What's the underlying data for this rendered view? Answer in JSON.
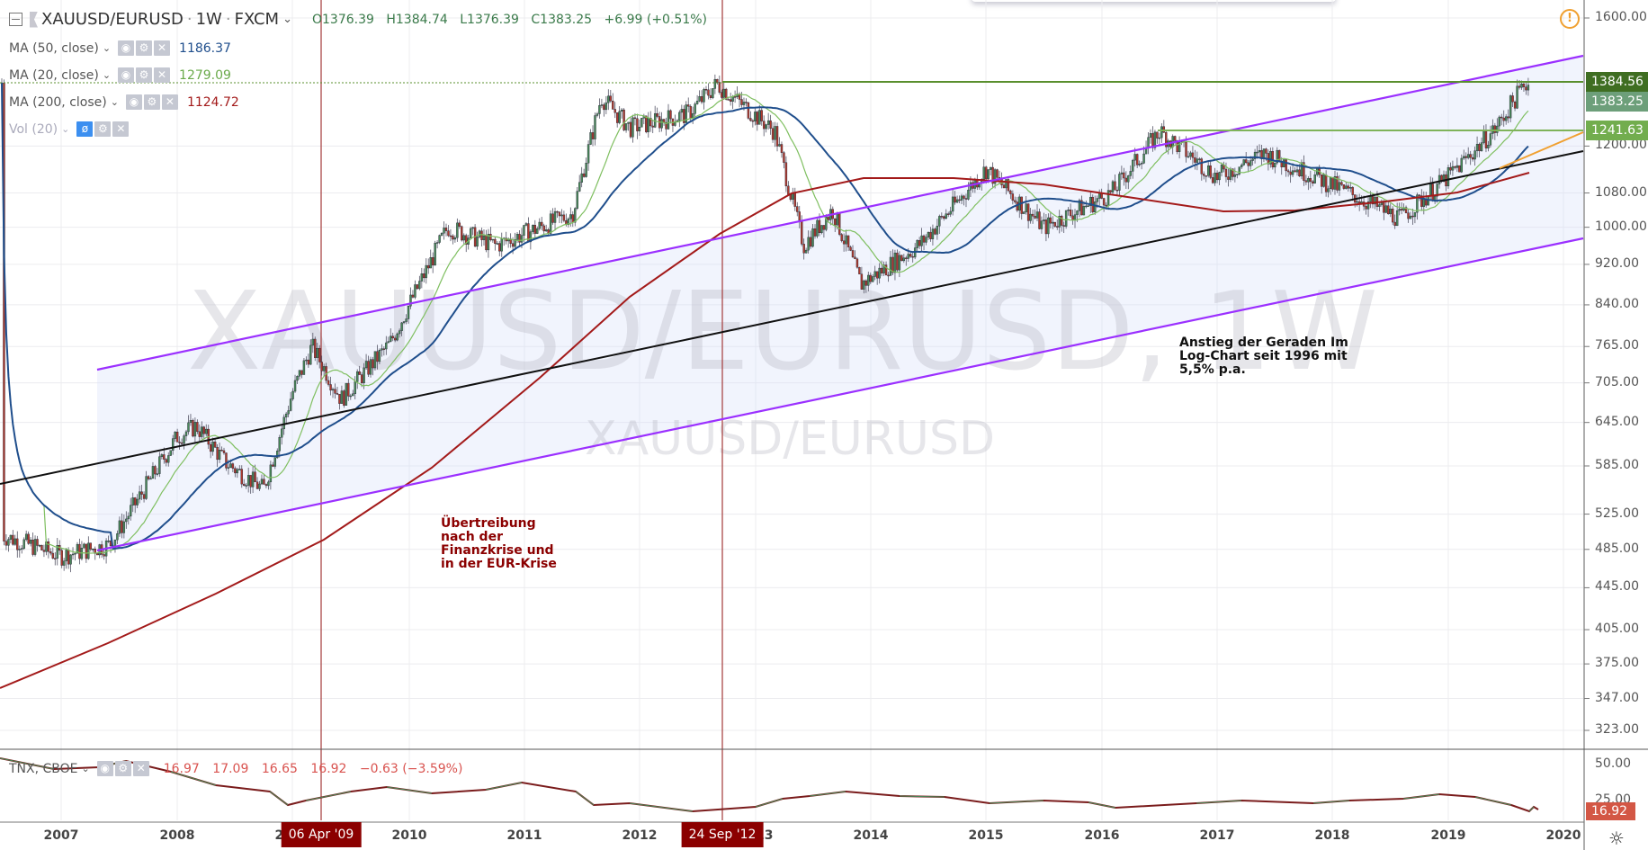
{
  "header": {
    "symbol": "XAUUSD/EURUSD",
    "separator": "·",
    "interval": "1W",
    "exchange": "FXCM",
    "ohlc": {
      "open": "O1376.39",
      "high": "H1384.74",
      "low": "L1376.39",
      "close": "C1383.25",
      "change": "+6.99 (+0.51%)"
    }
  },
  "indicators": [
    {
      "label": "MA (50, close)",
      "value": "1186.37",
      "color": "#1f4e8c"
    },
    {
      "label": "MA (20, close)",
      "value": "1279.09",
      "color": "#6aaa4a"
    },
    {
      "label": "MA (200, close)",
      "value": "1124.72",
      "color": "#a31a1a"
    },
    {
      "label": "Vol (20)",
      "value": ""
    }
  ],
  "watermark": {
    "large": "XAUUSD/EURUSD, 1W",
    "small": "XAUUSD/EURUSD"
  },
  "annotations": {
    "right_note": [
      "Anstieg der Geraden Im",
      "Log-Chart seit 1996 mit",
      "5,5% p.a."
    ],
    "left_note": [
      "Übertreibung",
      "nach der",
      "Finanzkrise und",
      "in der EUR-Krise"
    ]
  },
  "price_axis": {
    "labels": [
      "1600.00",
      "1200.00",
      "1080.00",
      "1000.00",
      "920.00",
      "840.00",
      "765.00",
      "705.00",
      "645.00",
      "585.00",
      "525.00",
      "485.00",
      "445.00",
      "405.00",
      "375.00",
      "347.00",
      "323.00"
    ],
    "tags": [
      {
        "value": "1384.56",
        "color": "#3f6e22"
      },
      {
        "value": "1383.25",
        "color": "#6d9f7a"
      },
      {
        "value": "1241.63",
        "color": "#72ad4e"
      }
    ]
  },
  "sub_panel": {
    "symbol": "TNX, CBOE",
    "open": "16.97",
    "high": "17.09",
    "low": "16.65",
    "close": "16.92",
    "change": "−0.63 (−3.59%)",
    "axis_labels": [
      "50.00",
      "25.00"
    ],
    "last_tag": "16.92"
  },
  "time_axis": {
    "labels": [
      "2007",
      "2008",
      "2009",
      "2010",
      "2011",
      "2012",
      "2013",
      "2014",
      "2015",
      "2016",
      "2017",
      "2018",
      "2019",
      "2020"
    ],
    "crosshair_tags": [
      "06 Apr '09",
      "24 Sep '12"
    ]
  },
  "colors": {
    "up": "#4a8a5a",
    "down": "#b03a2e",
    "channel": "#9b30ff",
    "trend": "#111111",
    "ma50": "#1f4e8c",
    "ma20": "#7fbf60",
    "ma200": "#a31a1a",
    "resistance": "#5a8f2e",
    "orange": "#f0a030",
    "vline": "#a33a3a"
  },
  "chart_data": {
    "type": "candlestick",
    "title": "XAUUSD/EURUSD, 1W, FXCM",
    "x_range": [
      "2006-06",
      "2020-03"
    ],
    "y_scale": "log",
    "ylim": [
      300,
      1650
    ],
    "approx_close_path": [
      {
        "t": "2006-07",
        "v": 500
      },
      {
        "t": "2007-01",
        "v": 478
      },
      {
        "t": "2007-06",
        "v": 490
      },
      {
        "t": "2008-01",
        "v": 625
      },
      {
        "t": "2008-03",
        "v": 640
      },
      {
        "t": "2008-06",
        "v": 590
      },
      {
        "t": "2008-10",
        "v": 555
      },
      {
        "t": "2009-01",
        "v": 690
      },
      {
        "t": "2009-03",
        "v": 765
      },
      {
        "t": "2009-06",
        "v": 680
      },
      {
        "t": "2009-11",
        "v": 770
      },
      {
        "t": "2010-05",
        "v": 1000
      },
      {
        "t": "2010-10",
        "v": 960
      },
      {
        "t": "2011-06",
        "v": 1030
      },
      {
        "t": "2011-09",
        "v": 1340
      },
      {
        "t": "2011-12",
        "v": 1250
      },
      {
        "t": "2012-06",
        "v": 1290
      },
      {
        "t": "2012-09",
        "v": 1380
      },
      {
        "t": "2013-03",
        "v": 1240
      },
      {
        "t": "2013-06",
        "v": 960
      },
      {
        "t": "2013-09",
        "v": 1040
      },
      {
        "t": "2013-12",
        "v": 880
      },
      {
        "t": "2014-06",
        "v": 960
      },
      {
        "t": "2015-01",
        "v": 1140
      },
      {
        "t": "2015-07",
        "v": 1000
      },
      {
        "t": "2016-02",
        "v": 1080
      },
      {
        "t": "2016-07",
        "v": 1240
      },
      {
        "t": "2017-01",
        "v": 1120
      },
      {
        "t": "2017-06",
        "v": 1180
      },
      {
        "t": "2018-01",
        "v": 1100
      },
      {
        "t": "2018-08",
        "v": 1020
      },
      {
        "t": "2019-01",
        "v": 1120
      },
      {
        "t": "2019-06",
        "v": 1250
      },
      {
        "t": "2019-09",
        "v": 1383.25
      }
    ],
    "series": [
      {
        "name": "MA (50, close)",
        "last": 1186.37
      },
      {
        "name": "MA (20, close)",
        "last": 1279.09
      },
      {
        "name": "MA (200, close)",
        "last": 1124.72
      }
    ],
    "horizontal_levels": [
      1384.56,
      1241.63
    ],
    "sub_chart": {
      "name": "TNX, CBOE",
      "last": 16.92,
      "ylim": [
        0,
        55
      ]
    }
  }
}
